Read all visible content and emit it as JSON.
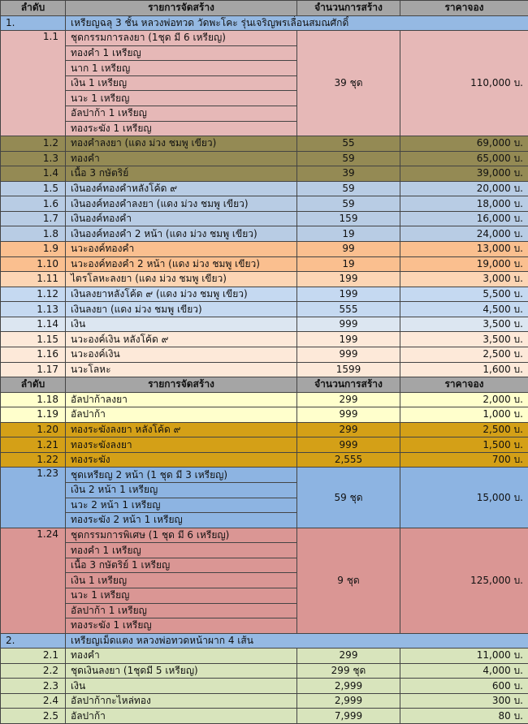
{
  "blocks": [
    {
      "header": [
        "ลำดับ",
        "รายการจัดสร้าง",
        "จำนวนการสร้าง",
        "ราคาจอง"
      ],
      "rows": [
        {
          "no": "1.",
          "title": "เหรียญฉลุ 3 ชั้น หลวงพ่อทวด วัดพะโคะ รุ่นเจริญพรเลื่อนสมณศักดิ์"
        },
        {
          "no": "1.1",
          "lines": [
            "ชุดกรรมการลงยา (1ชุด มี 6 เหรียญ)",
            "ทองคำ 1 เหรียญ",
            "นาก 1 เหรียญ",
            "เงิน 1 เหรียญ",
            "นวะ 1 เหรียญ",
            "อัลปาก้า 1 เหรียญ",
            "ทองระฆัง 1 เหรียญ"
          ],
          "qty": "39 ชุด",
          "price": "110,000 บ."
        },
        {
          "no": "1.2",
          "name": "ทองคำลงยา (แดง ม่วง ชมพู เขียว)",
          "qty": "55",
          "price": "69,000 บ."
        },
        {
          "no": "1.3",
          "name": "ทองคำ",
          "qty": "59",
          "price": "65,000 บ."
        },
        {
          "no": "1.4",
          "name": "เนื้อ 3 กษัตริย์",
          "qty": "39",
          "price": "39,000 บ."
        },
        {
          "no": "1.5",
          "name": "เงินองค์ทองคำหลังโค้ด ๙",
          "qty": "59",
          "price": "20,000 บ."
        },
        {
          "no": "1.6",
          "name": "เงินองค์ทองคำลงยา (แดง ม่วง ชมพู เขียว)",
          "qty": "59",
          "price": "18,000 บ."
        },
        {
          "no": "1.7",
          "name": "เงินองค์ทองคำ",
          "qty": "159",
          "price": "16,000 บ."
        },
        {
          "no": "1.8",
          "name": "เงินองค์ทองคำ 2 หน้า (แดง ม่วง ชมพู เขียว)",
          "qty": "19",
          "price": "24,000 บ."
        },
        {
          "no": "1.9",
          "name": "นวะองค์ทองคำ",
          "qty": "99",
          "price": "13,000 บ."
        },
        {
          "no": "1.10",
          "name": "นวะองค์ทองคำ 2 หน้า (แดง ม่วง ชมพู เขียว)",
          "qty": "19",
          "price": "19,000 บ."
        },
        {
          "no": "1.11",
          "name": "ไตรโลหะลงยา (แดง ม่วง ชมพู เขียว)",
          "qty": "199",
          "price": "3,000 บ."
        },
        {
          "no": "1.12",
          "name": "เงินลงยาหลังโค้ด ๙ (แดง ม่วง ชมพู เขียว)",
          "qty": "199",
          "price": "5,500 บ."
        },
        {
          "no": "1.13",
          "name": "เงินลงยา (แดง ม่วง ชมพู เขียว)",
          "qty": "555",
          "price": "4,500 บ."
        },
        {
          "no": "1.14",
          "name": "เงิน",
          "qty": "999",
          "price": "3,500 บ."
        },
        {
          "no": "1.15",
          "name": "นวะองค์เงิน หลังโค้ด ๙",
          "qty": "199",
          "price": "3,500 บ."
        },
        {
          "no": "1.16",
          "name": "นวะองค์เงิน",
          "qty": "999",
          "price": "2,500 บ."
        },
        {
          "no": "1.17",
          "name": "นวะโลหะ",
          "qty": "1599",
          "price": "1,600 บ."
        }
      ]
    },
    {
      "header": [
        "ลำดับ",
        "รายการจัดสร้าง",
        "จำนวนการสร้าง",
        "ราคาจอง"
      ],
      "rows": [
        {
          "no": "1.18",
          "name": "อัลปาก้าลงยา",
          "qty": "299",
          "price": "2,000 บ."
        },
        {
          "no": "1.19",
          "name": "อัลปาก้า",
          "qty": "999",
          "price": "1,000 บ."
        },
        {
          "no": "1.20",
          "name": "ทองระฆังลงยา หลังโค้ด ๙",
          "qty": "299",
          "price": "2,500 บ."
        },
        {
          "no": "1.21",
          "name": "ทองระฆังลงยา",
          "qty": "999",
          "price": "1,500 บ."
        },
        {
          "no": "1.22",
          "name": "ทองระฆัง",
          "qty": "2,555",
          "price": "700 บ."
        },
        {
          "no": "1.23",
          "lines": [
            "ชุดเหรียญ 2 หน้า (1 ชุด มี 3 เหรียญ)",
            "เงิน 2 หน้า 1 เหรียญ",
            "นวะ 2 หน้า 1 เหรียญ",
            "ทองระฆัง 2 หน้า 1 เหรียญ"
          ],
          "qty": "59 ชุด",
          "price": "15,000 บ."
        },
        {
          "no": "1.24",
          "lines": [
            "ชุดกรรมการพิเศษ (1 ชุด มี 6 เหรียญ)",
            "ทองคำ 1 เหรียญ",
            "เนื้อ 3 กษัตริย์ 1 เหรียญ",
            "เงิน 1 เหรียญ",
            "นวะ 1 เหรียญ",
            "อัลปาก้า 1 เหรียญ",
            "ทองระฆัง 1 เหรียญ"
          ],
          "qty": "9 ชุด",
          "price": "125,000 บ."
        },
        {
          "no": "2.",
          "title": "เหรียญเม็ดแตง หลวงพ่อทวดหน้าผาก 4 เส้น"
        },
        {
          "no": "2.1",
          "name": "ทองคำ",
          "qty": "299",
          "price": "11,000 บ."
        },
        {
          "no": "2.2",
          "name": "ชุดเงินลงยา (1ชุดมี 5 เหรียญ)",
          "qty": "299 ชุด",
          "price": "4,000 บ."
        },
        {
          "no": "2.3",
          "name": "เงิน",
          "qty": "2,999",
          "price": "600 บ."
        },
        {
          "no": "2.4",
          "name": "อัลปาก้ากะไหล่ทอง",
          "qty": "2,999",
          "price": "300 บ."
        },
        {
          "no": "2.5",
          "name": "อัลปาก้า",
          "qty": "7,999",
          "price": "80 บ."
        }
      ]
    }
  ]
}
